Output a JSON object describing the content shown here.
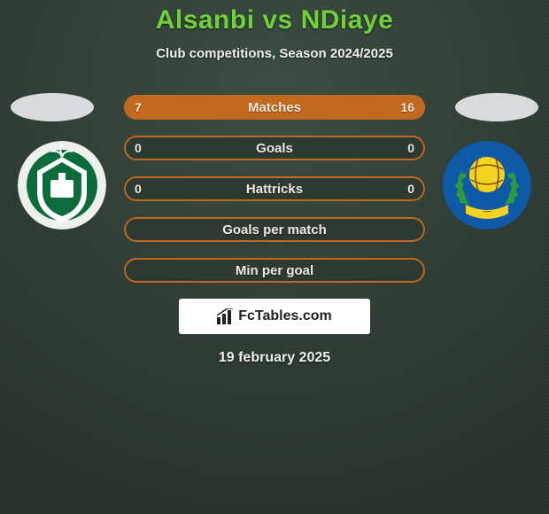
{
  "background": {
    "top_color": "#2d3a33",
    "bottom_color": "#2e372f",
    "gradient_stops": [
      "#2d3a33",
      "#35433b",
      "#2e372f"
    ]
  },
  "title": {
    "text": "Alsanbi vs NDiaye",
    "color": "#6fd03a",
    "fontsize": 30,
    "fontweight": 800
  },
  "subtitle": {
    "text": "Club competitions, Season 2024/2025",
    "color": "#eef1ed",
    "fontsize": 15,
    "fontweight": 700
  },
  "ovals": {
    "fill": "#d8dadb"
  },
  "badges": {
    "left": {
      "outer_fill": "#eef0ee",
      "crest_green": "#0b6b3a",
      "crest_white": "#ffffff",
      "crest_dark": "#0a3d25"
    },
    "right": {
      "outer_fill": "#0f5aa6",
      "ball_yellow": "#f4d31f",
      "laurel_green": "#2c9a3e",
      "inner_text": "#7b4a12"
    }
  },
  "bars": {
    "border_color": "#c16a1f",
    "row_bg": "#2d3a33",
    "left_seg_color": "#c16a1f",
    "right_seg_color": "#c16a1f",
    "label_color": "#efe8df",
    "value_color": "#efe8df",
    "label_fontsize": 15,
    "value_fontsize": 14,
    "rows": [
      {
        "label": "Matches",
        "left": "7",
        "right": "16",
        "left_pct": 30,
        "right_pct": 70
      },
      {
        "label": "Goals",
        "left": "0",
        "right": "0",
        "left_pct": 0,
        "right_pct": 0
      },
      {
        "label": "Hattricks",
        "left": "0",
        "right": "0",
        "left_pct": 0,
        "right_pct": 0
      },
      {
        "label": "Goals per match",
        "left": "",
        "right": "",
        "left_pct": 0,
        "right_pct": 0
      },
      {
        "label": "Min per goal",
        "left": "",
        "right": "",
        "left_pct": 0,
        "right_pct": 0
      }
    ]
  },
  "fctables": {
    "text": "FcTables.com",
    "bg": "#ffffff",
    "color": "#222222",
    "icon_color": "#222222"
  },
  "date": {
    "text": "19 february 2025",
    "color": "#eef1ed",
    "fontsize": 16
  }
}
